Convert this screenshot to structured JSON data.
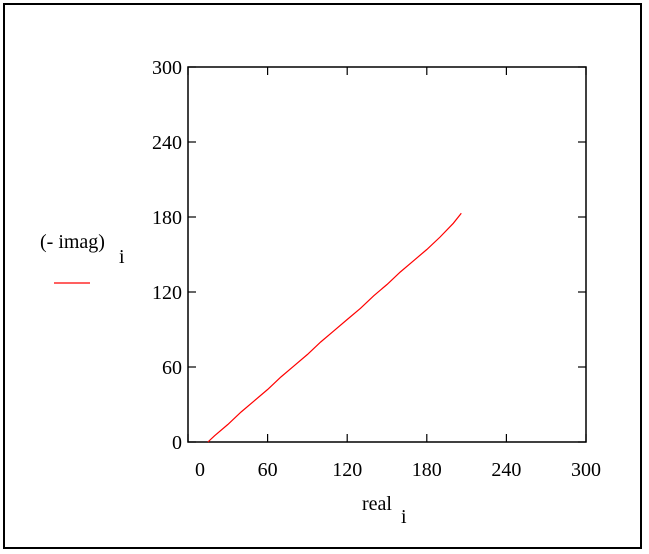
{
  "chart_data": {
    "type": "line",
    "xlabel": "real",
    "xlabel_subscript": "i",
    "ylabel": "(- imag)",
    "ylabel_subscript": "i",
    "xlim": [
      0,
      300
    ],
    "ylim": [
      0,
      300
    ],
    "xticks": [
      0,
      60,
      120,
      180,
      240,
      300
    ],
    "yticks": [
      0,
      60,
      120,
      180,
      240,
      300
    ],
    "grid": false,
    "legend": "left",
    "series": [
      {
        "name": "(- imag)",
        "color": "#ff0000",
        "x": [
          15,
          20,
          30,
          40,
          50,
          60,
          70,
          80,
          90,
          100,
          110,
          120,
          130,
          140,
          150,
          160,
          170,
          180,
          190,
          200,
          206
        ],
        "y": [
          0,
          5,
          14,
          24,
          33,
          42,
          52,
          61,
          70,
          80,
          89,
          98,
          107,
          117,
          126,
          136,
          145,
          154,
          164,
          175,
          183
        ]
      }
    ]
  }
}
